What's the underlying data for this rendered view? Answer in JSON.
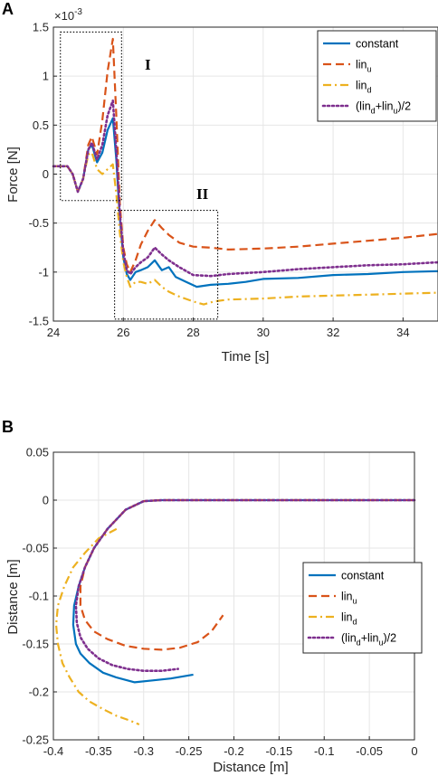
{
  "chart_data": [
    {
      "panel": "A",
      "type": "line",
      "xlabel": "Time [s]",
      "ylabel": "Force [N]",
      "exponent_label": "×10",
      "exponent_power": "-3",
      "xlim": [
        24,
        35
      ],
      "ylim": [
        -1.5,
        1.5
      ],
      "xticks": [
        "24",
        "26",
        "28",
        "30",
        "32",
        "34"
      ],
      "yticks": [
        "1.5",
        "1",
        "0.5",
        "0",
        "-0.5",
        "-1",
        "-1.5"
      ],
      "grid": true,
      "legend_position": "top-right",
      "annotations": [
        {
          "label": "I",
          "box": {
            "x": [
              24.2,
              25.95
            ],
            "y": [
              -0.27,
              1.45
            ]
          }
        },
        {
          "label": "II",
          "box": {
            "x": [
              25.75,
              28.7
            ],
            "y": [
              -1.48,
              -0.37
            ]
          }
        }
      ],
      "series": [
        {
          "name": "constant",
          "color": "#0072BD",
          "style": "solid",
          "x": [
            24,
            24.4,
            24.55,
            24.7,
            24.85,
            25.0,
            25.1,
            25.25,
            25.4,
            25.55,
            25.7,
            25.8,
            25.9,
            26.0,
            26.1,
            26.2,
            26.35,
            26.5,
            26.7,
            26.9,
            27.1,
            27.3,
            27.5,
            27.8,
            28.1,
            28.5,
            29,
            29.5,
            30,
            31,
            32,
            33,
            34,
            35
          ],
          "y": [
            0.08,
            0.08,
            0.0,
            -0.18,
            -0.05,
            0.25,
            0.3,
            0.12,
            0.22,
            0.45,
            0.57,
            0.15,
            -0.45,
            -0.85,
            -1.02,
            -1.08,
            -1.0,
            -0.98,
            -0.95,
            -0.88,
            -0.98,
            -0.95,
            -1.05,
            -1.1,
            -1.15,
            -1.13,
            -1.12,
            -1.1,
            -1.07,
            -1.06,
            -1.03,
            -1.02,
            -1.0,
            -0.99
          ]
        },
        {
          "name": "lin_u",
          "color": "#D95319",
          "style": "dashed",
          "x": [
            24,
            24.4,
            24.55,
            24.7,
            24.85,
            25.0,
            25.1,
            25.25,
            25.4,
            25.55,
            25.7,
            25.8,
            25.9,
            26.0,
            26.1,
            26.2,
            26.35,
            26.5,
            26.7,
            26.9,
            27.1,
            27.3,
            27.6,
            28.0,
            28.5,
            29,
            30,
            31,
            32,
            33,
            34,
            35
          ],
          "y": [
            0.08,
            0.08,
            0.0,
            -0.18,
            -0.05,
            0.3,
            0.38,
            0.2,
            0.55,
            1.05,
            1.38,
            0.6,
            -0.3,
            -0.75,
            -0.92,
            -1.0,
            -0.88,
            -0.72,
            -0.58,
            -0.47,
            -0.55,
            -0.62,
            -0.7,
            -0.74,
            -0.75,
            -0.77,
            -0.76,
            -0.74,
            -0.71,
            -0.68,
            -0.65,
            -0.61
          ]
        },
        {
          "name": "lin_d",
          "color": "#EDB120",
          "style": "dashdot",
          "x": [
            24,
            24.4,
            24.55,
            24.7,
            24.85,
            25.0,
            25.1,
            25.25,
            25.4,
            25.55,
            25.7,
            25.8,
            25.9,
            26.0,
            26.1,
            26.2,
            26.35,
            26.5,
            26.7,
            26.9,
            27.1,
            27.3,
            27.6,
            28.0,
            28.3,
            28.6,
            29,
            30,
            31,
            32,
            33,
            34,
            35
          ],
          "y": [
            0.08,
            0.08,
            0.0,
            -0.18,
            -0.05,
            0.2,
            0.22,
            0.05,
            0.0,
            0.05,
            0.1,
            -0.2,
            -0.6,
            -0.9,
            -1.05,
            -1.15,
            -1.1,
            -1.1,
            -1.12,
            -1.08,
            -1.15,
            -1.2,
            -1.25,
            -1.3,
            -1.33,
            -1.3,
            -1.28,
            -1.27,
            -1.25,
            -1.24,
            -1.23,
            -1.22,
            -1.21
          ]
        },
        {
          "name": "(lin_d+lin_u)/2",
          "color": "#7E2F8E",
          "style": "dotted",
          "x": [
            24,
            24.4,
            24.55,
            24.7,
            24.85,
            25.0,
            25.1,
            25.25,
            25.4,
            25.55,
            25.7,
            25.8,
            25.9,
            26.0,
            26.1,
            26.2,
            26.35,
            26.5,
            26.7,
            26.9,
            27.1,
            27.3,
            27.6,
            28.0,
            28.5,
            29,
            30,
            31,
            32,
            33,
            34,
            35
          ],
          "y": [
            0.08,
            0.08,
            0.0,
            -0.18,
            -0.05,
            0.25,
            0.32,
            0.15,
            0.3,
            0.6,
            0.75,
            0.25,
            -0.4,
            -0.8,
            -0.98,
            -1.02,
            -0.95,
            -0.9,
            -0.85,
            -0.75,
            -0.82,
            -0.88,
            -0.95,
            -1.03,
            -1.04,
            -1.02,
            -1.0,
            -0.97,
            -0.95,
            -0.93,
            -0.92,
            -0.9
          ]
        }
      ]
    },
    {
      "panel": "B",
      "type": "line",
      "xlabel": "Distance [m]",
      "ylabel": "Distance [m]",
      "xlim": [
        -0.4,
        0
      ],
      "ylim": [
        -0.25,
        0.05
      ],
      "xticks": [
        "-0.4",
        "-0.35",
        "-0.3",
        "-0.25",
        "-0.2",
        "-0.15",
        "-0.1",
        "-0.05",
        "0"
      ],
      "yticks": [
        "0.05",
        "0",
        "-0.05",
        "-0.1",
        "-0.15",
        "-0.2",
        "-0.25"
      ],
      "grid": true,
      "legend_position": "middle-right",
      "series": [
        {
          "name": "constant",
          "color": "#0072BD",
          "style": "solid",
          "x": [
            0,
            -0.05,
            -0.1,
            -0.15,
            -0.2,
            -0.25,
            -0.28,
            -0.3,
            -0.32,
            -0.34,
            -0.355,
            -0.365,
            -0.372,
            -0.377,
            -0.378,
            -0.375,
            -0.37,
            -0.36,
            -0.345,
            -0.33,
            -0.31,
            -0.29,
            -0.27,
            -0.245
          ],
          "y": [
            0.0,
            0.0,
            0.0,
            0.0,
            0.0,
            0.0,
            0.0,
            -0.001,
            -0.01,
            -0.03,
            -0.05,
            -0.07,
            -0.09,
            -0.11,
            -0.13,
            -0.15,
            -0.16,
            -0.17,
            -0.18,
            -0.185,
            -0.19,
            -0.188,
            -0.186,
            -0.182
          ]
        },
        {
          "name": "lin_u",
          "color": "#D95319",
          "style": "dashed",
          "x": [
            0,
            -0.05,
            -0.1,
            -0.15,
            -0.2,
            -0.25,
            -0.28,
            -0.3,
            -0.32,
            -0.34,
            -0.355,
            -0.365,
            -0.37,
            -0.37,
            -0.365,
            -0.355,
            -0.34,
            -0.32,
            -0.3,
            -0.28,
            -0.26,
            -0.24,
            -0.225,
            -0.212
          ],
          "y": [
            0.0,
            0.0,
            0.0,
            0.0,
            0.0,
            0.0,
            0.0,
            -0.001,
            -0.01,
            -0.03,
            -0.05,
            -0.07,
            -0.09,
            -0.11,
            -0.125,
            -0.137,
            -0.145,
            -0.152,
            -0.155,
            -0.156,
            -0.154,
            -0.148,
            -0.137,
            -0.12
          ]
        },
        {
          "name": "lin_d",
          "color": "#EDB120",
          "style": "dashdot",
          "x": [
            -0.33,
            -0.35,
            -0.365,
            -0.378,
            -0.388,
            -0.395,
            -0.397,
            -0.395,
            -0.39,
            -0.382,
            -0.372,
            -0.36,
            -0.345,
            -0.33,
            -0.315,
            -0.305
          ],
          "y": [
            -0.03,
            -0.04,
            -0.055,
            -0.07,
            -0.09,
            -0.11,
            -0.13,
            -0.15,
            -0.17,
            -0.185,
            -0.2,
            -0.21,
            -0.218,
            -0.225,
            -0.23,
            -0.234
          ]
        },
        {
          "name": "(lin_d+lin_u)/2",
          "color": "#7E2F8E",
          "style": "dotted",
          "x": [
            0,
            -0.05,
            -0.1,
            -0.15,
            -0.2,
            -0.25,
            -0.28,
            -0.3,
            -0.32,
            -0.34,
            -0.355,
            -0.365,
            -0.372,
            -0.375,
            -0.374,
            -0.37,
            -0.362,
            -0.35,
            -0.335,
            -0.318,
            -0.3,
            -0.28,
            -0.262
          ],
          "y": [
            0.0,
            0.0,
            0.0,
            0.0,
            0.0,
            0.0,
            0.0,
            -0.001,
            -0.01,
            -0.03,
            -0.05,
            -0.07,
            -0.09,
            -0.11,
            -0.128,
            -0.143,
            -0.155,
            -0.165,
            -0.172,
            -0.176,
            -0.178,
            -0.178,
            -0.176
          ]
        }
      ]
    }
  ],
  "panel_labels": [
    "A",
    "B"
  ],
  "annotation_labels": [
    "I",
    "II"
  ],
  "legend": {
    "entries": [
      {
        "base": "constant",
        "parts": [
          {
            "t": "constant",
            "sub": false
          }
        ]
      },
      {
        "base": "lin_u",
        "parts": [
          {
            "t": "lin",
            "sub": false
          },
          {
            "t": "u",
            "sub": true
          }
        ]
      },
      {
        "base": "lin_d",
        "parts": [
          {
            "t": "lin",
            "sub": false
          },
          {
            "t": "d",
            "sub": true
          }
        ]
      },
      {
        "base": "(lin_d+lin_u)/2",
        "parts": [
          {
            "t": "(lin",
            "sub": false
          },
          {
            "t": "d",
            "sub": true
          },
          {
            "t": "+lin",
            "sub": false
          },
          {
            "t": "u",
            "sub": true
          },
          {
            "t": ")/2",
            "sub": false
          }
        ]
      }
    ]
  }
}
